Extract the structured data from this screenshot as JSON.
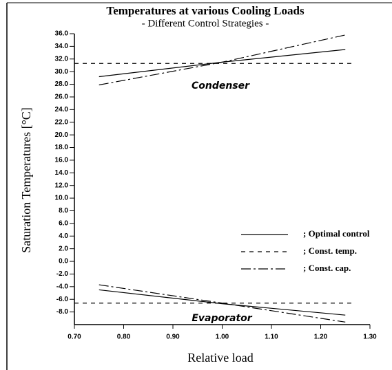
{
  "chart_data": {
    "type": "line",
    "title": "Temperatures at various Cooling Loads",
    "subtitle": "- Different Control Strategies -",
    "xlabel": "Relative load",
    "ylabel": "Saturation Temperatures [°C]",
    "annotations": [
      "Condenser",
      "Evaporator"
    ],
    "xlim": [
      0.7,
      1.3
    ],
    "ylim": [
      -10,
      36
    ],
    "xticks": [
      {
        "value": 0.7,
        "label": "0.70"
      },
      {
        "value": 0.8,
        "label": "0.80"
      },
      {
        "value": 0.9,
        "label": "0.90"
      },
      {
        "value": 1.0,
        "label": "1.00"
      },
      {
        "value": 1.1,
        "label": "1.10"
      },
      {
        "value": 1.2,
        "label": "1.20"
      },
      {
        "value": 1.3,
        "label": "1.30"
      }
    ],
    "yticks": [
      {
        "value": 36,
        "label": "36.0"
      },
      {
        "value": 34,
        "label": "34.0"
      },
      {
        "value": 32,
        "label": "32.0"
      },
      {
        "value": 30,
        "label": "30.0"
      },
      {
        "value": 28,
        "label": "28.0"
      },
      {
        "value": 26,
        "label": "26.0"
      },
      {
        "value": 24,
        "label": "24.0"
      },
      {
        "value": 22,
        "label": "22.0"
      },
      {
        "value": 20,
        "label": "20.0"
      },
      {
        "value": 18,
        "label": "18.0"
      },
      {
        "value": 16,
        "label": "16.0"
      },
      {
        "value": 14,
        "label": "14.0"
      },
      {
        "value": 12,
        "label": "12.0"
      },
      {
        "value": 10,
        "label": "10.0"
      },
      {
        "value": 8,
        "label": "8.0"
      },
      {
        "value": 6,
        "label": "6.0"
      },
      {
        "value": 4,
        "label": "4.0"
      },
      {
        "value": 2,
        "label": "2.0"
      },
      {
        "value": 0,
        "label": "0.0"
      },
      {
        "value": -2,
        "label": "-2.0"
      },
      {
        "value": -4,
        "label": "-4.0"
      },
      {
        "value": -6,
        "label": "-6.0"
      },
      {
        "value": -8,
        "label": "-8.0"
      }
    ],
    "series": [
      {
        "name": "; Optimal control",
        "color": "#000000",
        "dash": "none",
        "curves": [
          {
            "x": [
              0.75,
              1.0,
              1.25
            ],
            "values": [
              29.2,
              31.5,
              33.5
            ]
          },
          {
            "x": [
              0.75,
              1.0,
              1.25
            ],
            "values": [
              -4.5,
              -6.7,
              -8.5
            ]
          }
        ]
      },
      {
        "name": "; Const. temp.",
        "color": "#000000",
        "dash": "6 6",
        "curves": [
          {
            "x": [
              0.7,
              1.27
            ],
            "values": [
              31.3,
              31.3
            ]
          },
          {
            "x": [
              0.7,
              1.27
            ],
            "values": [
              -6.6,
              -6.6
            ]
          }
        ]
      },
      {
        "name": "; Const. cap.",
        "color": "#000000",
        "dash": "14 4 3 4",
        "curves": [
          {
            "x": [
              0.75,
              1.0,
              1.25
            ],
            "values": [
              27.9,
              31.5,
              35.8
            ]
          },
          {
            "x": [
              0.75,
              1.0,
              1.25
            ],
            "values": [
              -3.7,
              -6.6,
              -9.6
            ]
          }
        ]
      }
    ]
  }
}
